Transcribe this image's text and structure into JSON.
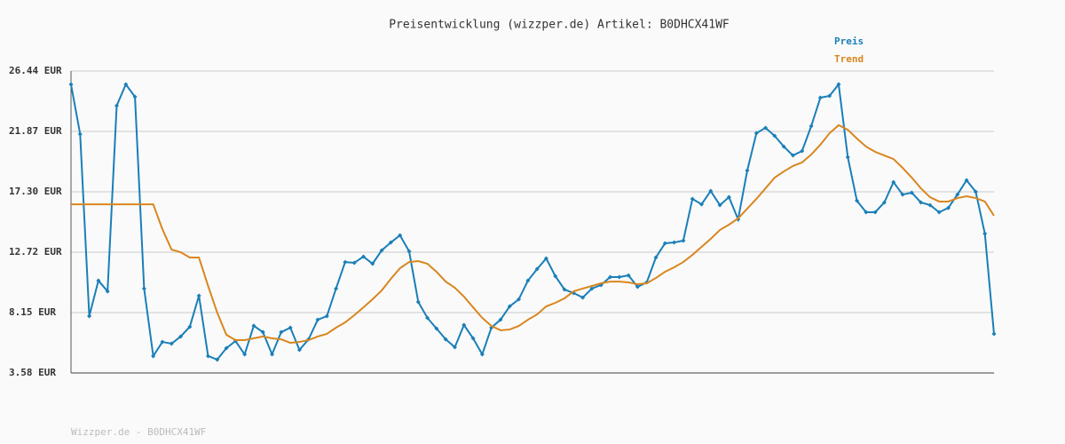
{
  "chart_data": {
    "type": "line",
    "title": "Preisentwicklung (wizzper.de) Artikel: B0DHCX41WF",
    "footer": "Wizzper.de - B0DHCX41WF",
    "ylim": [
      3.58,
      26.44
    ],
    "yticks": [
      {
        "value": 3.58,
        "label": "3.58 EUR"
      },
      {
        "value": 8.15,
        "label": "8.15 EUR"
      },
      {
        "value": 12.72,
        "label": "12.72 EUR"
      },
      {
        "value": 17.3,
        "label": "17.30 EUR"
      },
      {
        "value": 21.87,
        "label": "21.87 EUR"
      },
      {
        "value": 26.44,
        "label": "26.44 EUR"
      }
    ],
    "grid": true,
    "legend": "top-right",
    "series": [
      {
        "name": "Preis",
        "color": "#1a7fb8",
        "markers": true,
        "values": [
          25.43,
          21.67,
          7.88,
          10.57,
          9.76,
          23.82,
          25.43,
          24.49,
          9.97,
          4.86,
          5.93,
          5.8,
          6.34,
          7.08,
          9.43,
          4.86,
          4.59,
          5.46,
          6.0,
          4.99,
          7.15,
          6.67,
          4.99,
          6.67,
          7.01,
          5.33,
          6.13,
          7.61,
          7.88,
          9.97,
          11.98,
          11.92,
          12.39,
          11.85,
          12.86,
          13.46,
          14.0,
          12.79,
          8.96,
          7.75,
          6.94,
          6.13,
          5.53,
          7.21,
          6.2,
          4.99,
          7.01,
          7.61,
          8.62,
          9.16,
          10.57,
          11.45,
          12.25,
          10.91,
          9.9,
          9.63,
          9.29,
          9.97,
          10.24,
          10.84,
          10.84,
          10.97,
          10.1,
          10.44,
          12.32,
          13.4,
          13.46,
          13.6,
          16.76,
          16.35,
          17.36,
          16.29,
          16.89,
          15.21,
          18.91,
          21.73,
          22.14,
          21.53,
          20.72,
          20.05,
          20.39,
          22.27,
          24.42,
          24.56,
          25.43,
          19.92,
          16.62,
          15.75,
          15.75,
          16.49,
          18.03,
          17.09,
          17.23,
          16.49,
          16.29,
          15.75,
          16.08,
          17.09,
          18.17,
          17.3,
          14.13,
          6.54
        ]
      },
      {
        "name": "Trend",
        "color": "#d9861f",
        "markers": false,
        "values": [
          16.35,
          16.35,
          16.35,
          16.35,
          16.35,
          16.35,
          16.35,
          16.35,
          16.35,
          16.35,
          14.47,
          12.92,
          12.72,
          12.32,
          12.32,
          10.17,
          8.15,
          6.47,
          6.07,
          6.07,
          6.2,
          6.34,
          6.2,
          6.13,
          5.86,
          5.93,
          6.07,
          6.34,
          6.54,
          7.01,
          7.41,
          7.95,
          8.55,
          9.16,
          9.83,
          10.71,
          11.51,
          11.98,
          12.05,
          11.85,
          11.24,
          10.5,
          10.03,
          9.36,
          8.55,
          7.75,
          7.14,
          6.81,
          6.87,
          7.14,
          7.61,
          8.01,
          8.62,
          8.89,
          9.23,
          9.76,
          9.97,
          10.17,
          10.37,
          10.5,
          10.5,
          10.44,
          10.3,
          10.37,
          10.77,
          11.24,
          11.58,
          11.98,
          12.52,
          13.13,
          13.73,
          14.4,
          14.81,
          15.28,
          16.02,
          16.76,
          17.56,
          18.37,
          18.84,
          19.25,
          19.52,
          20.12,
          20.86,
          21.73,
          22.34,
          22.0,
          21.33,
          20.72,
          20.32,
          20.05,
          19.78,
          19.11,
          18.37,
          17.56,
          16.89,
          16.56,
          16.56,
          16.82,
          16.96,
          16.82,
          16.56,
          15.48
        ]
      }
    ]
  }
}
